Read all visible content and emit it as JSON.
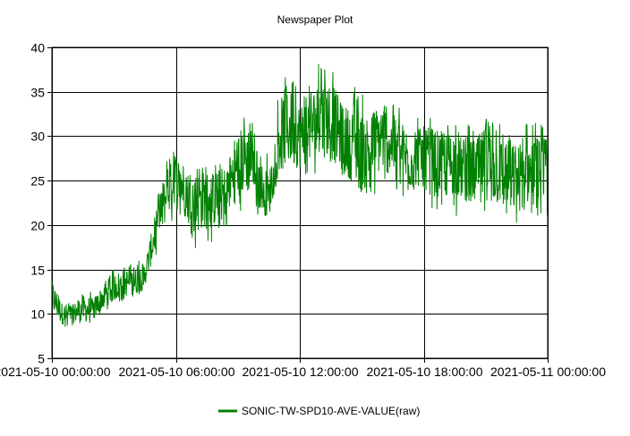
{
  "chart_data": {
    "type": "line",
    "title": "Newspaper Plot",
    "xlabel": "",
    "ylabel": "",
    "x_ticks": [
      "2021-05-10 00:00:00",
      "2021-05-10 06:00:00",
      "2021-05-10 12:00:00",
      "2021-05-10 18:00:00",
      "2021-05-11 00:00:00"
    ],
    "y_ticks": [
      "5",
      "10",
      "15",
      "20",
      "25",
      "30",
      "35",
      "40"
    ],
    "ylim": [
      5,
      40
    ],
    "xlim": [
      "2021-05-10 00:00:00",
      "2021-05-11 00:00:00"
    ],
    "grid": true,
    "legend_position": "bottom",
    "series": [
      {
        "name": "SONIC-TW-SPD10-AVE-VALUE(raw)",
        "color": "#008000",
        "x": [
          "2021-05-10 00:00:00",
          "2021-05-10 00:30:00",
          "2021-05-10 01:00:00",
          "2021-05-10 01:30:00",
          "2021-05-10 02:00:00",
          "2021-05-10 02:30:00",
          "2021-05-10 03:00:00",
          "2021-05-10 03:30:00",
          "2021-05-10 04:00:00",
          "2021-05-10 04:30:00",
          "2021-05-10 05:00:00",
          "2021-05-10 05:30:00",
          "2021-05-10 06:00:00",
          "2021-05-10 06:30:00",
          "2021-05-10 07:00:00",
          "2021-05-10 07:30:00",
          "2021-05-10 08:00:00",
          "2021-05-10 08:30:00",
          "2021-05-10 09:00:00",
          "2021-05-10 09:30:00",
          "2021-05-10 10:00:00",
          "2021-05-10 10:30:00",
          "2021-05-10 11:00:00",
          "2021-05-10 11:30:00",
          "2021-05-10 12:00:00",
          "2021-05-10 12:30:00",
          "2021-05-10 13:00:00",
          "2021-05-10 13:30:00",
          "2021-05-10 14:00:00",
          "2021-05-10 14:30:00",
          "2021-05-10 15:00:00",
          "2021-05-10 15:30:00",
          "2021-05-10 16:00:00",
          "2021-05-10 16:30:00",
          "2021-05-10 17:00:00",
          "2021-05-10 17:30:00",
          "2021-05-10 18:00:00",
          "2021-05-10 18:30:00",
          "2021-05-10 19:00:00",
          "2021-05-10 19:30:00",
          "2021-05-10 20:00:00",
          "2021-05-10 20:30:00",
          "2021-05-10 21:00:00",
          "2021-05-10 21:30:00",
          "2021-05-10 22:00:00",
          "2021-05-10 22:30:00",
          "2021-05-10 23:00:00",
          "2021-05-10 23:30:00",
          "2021-05-11 00:00:00"
        ],
        "values": [
          12.0,
          10.0,
          10.0,
          10.5,
          10.5,
          12.0,
          13.0,
          13.5,
          13.5,
          14.5,
          19.0,
          23.0,
          25.5,
          24.0,
          22.5,
          23.0,
          23.0,
          24.0,
          27.0,
          27.5,
          25.0,
          23.0,
          30.0,
          31.0,
          30.0,
          31.0,
          32.0,
          32.0,
          30.0,
          29.0,
          28.0,
          29.0,
          30.0,
          29.0,
          28.0,
          27.0,
          28.0,
          27.0,
          27.0,
          27.0,
          26.0,
          26.0,
          27.0,
          26.0,
          26.0,
          25.0,
          26.0,
          26.0,
          26.0
        ],
        "min": [
          8.5,
          8.0,
          8.5,
          8.0,
          9.0,
          10.0,
          11.0,
          11.5,
          11.0,
          13.0,
          16.0,
          19.0,
          21.0,
          20.5,
          17.0,
          18.0,
          18.0,
          19.0,
          21.0,
          22.0,
          21.0,
          21.0,
          26.0,
          25.0,
          24.5,
          25.5,
          26.0,
          25.0,
          24.0,
          24.0,
          23.5,
          23.0,
          24.0,
          24.0,
          23.0,
          22.5,
          23.5,
          21.5,
          22.0,
          21.0,
          21.0,
          21.5,
          20.5,
          21.0,
          20.5,
          20.0,
          21.0,
          20.5,
          20.0
        ],
        "max": [
          14.0,
          11.5,
          11.5,
          12.5,
          12.5,
          14.0,
          15.5,
          16.0,
          15.5,
          17.0,
          22.0,
          27.0,
          29.0,
          27.5,
          27.0,
          27.0,
          27.0,
          27.0,
          31.5,
          33.5,
          29.0,
          28.5,
          38.0,
          37.5,
          35.0,
          36.5,
          38.5,
          38.0,
          35.0,
          35.5,
          36.5,
          34.0,
          35.5,
          34.0,
          33.0,
          32.0,
          32.5,
          32.5,
          32.0,
          31.5,
          31.0,
          32.0,
          32.5,
          32.0,
          31.5,
          31.0,
          31.5,
          31.5,
          31.0
        ]
      }
    ]
  }
}
